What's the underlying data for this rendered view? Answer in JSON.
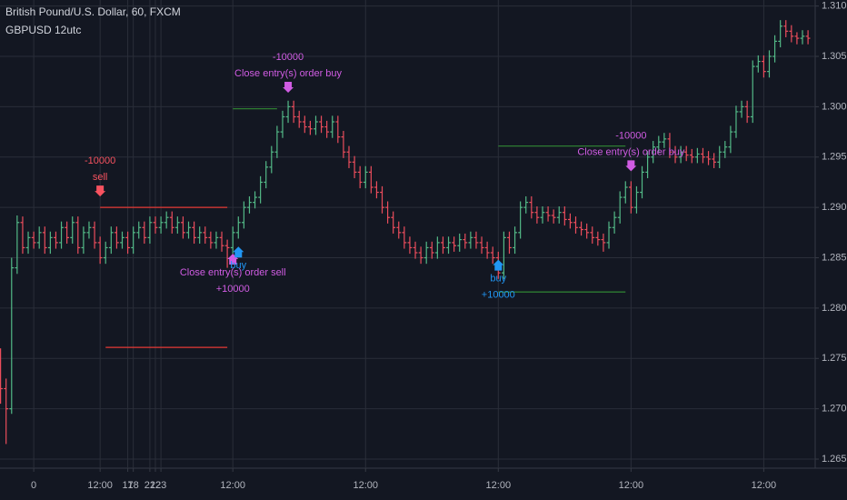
{
  "chart_data": {
    "type": "ohlc",
    "title": "British Pound/U.S. Dollar, 60, FXCM",
    "subtitle": "GBPUSD 12utc",
    "up_color": "#53b987",
    "down_color": "#eb4d5c",
    "grid": true,
    "xlim": [
      -6.1,
      141.3
    ],
    "ylim": [
      1.2641,
      1.3106
    ],
    "xticks": [
      0,
      {
        "value": 12,
        "label": "12:00"
      },
      17,
      {
        "value": 36,
        "label": "12:00"
      },
      18,
      {
        "value": 60,
        "label": "12:00"
      },
      21,
      {
        "value": 84,
        "label": "12:00"
      },
      22,
      {
        "value": 108,
        "label": "12:00"
      },
      23,
      {
        "value": 132,
        "label": "12:00"
      }
    ],
    "yticks": [
      {
        "value": 1.265,
        "label": "1.2650"
      },
      {
        "value": 1.27,
        "label": "1.2700"
      },
      {
        "value": 1.275,
        "label": "1.2750"
      },
      {
        "value": 1.28,
        "label": "1.2800"
      },
      {
        "value": 1.285,
        "label": "1.2850"
      },
      {
        "value": 1.29,
        "label": "1.2900"
      },
      {
        "value": 1.295,
        "label": "1.2950"
      },
      {
        "value": 1.3,
        "label": "1.3000"
      },
      {
        "value": 1.305,
        "label": "1.3050"
      },
      {
        "value": 1.31,
        "label": "1.3100"
      }
    ],
    "x": [
      -6,
      -5,
      -4,
      -3,
      -2,
      -1,
      0,
      1,
      2,
      3,
      4,
      5,
      6,
      7,
      8,
      9,
      10,
      11,
      12,
      13,
      14,
      15,
      16,
      17,
      18,
      19,
      20,
      21,
      22,
      23,
      24,
      25,
      26,
      27,
      28,
      29,
      30,
      31,
      32,
      33,
      34,
      35,
      36,
      37,
      38,
      39,
      40,
      41,
      42,
      43,
      44,
      45,
      46,
      47,
      48,
      49,
      50,
      51,
      52,
      53,
      54,
      55,
      56,
      57,
      58,
      59,
      60,
      61,
      62,
      63,
      64,
      65,
      66,
      67,
      68,
      69,
      70,
      71,
      72,
      73,
      74,
      75,
      76,
      77,
      78,
      79,
      80,
      81,
      82,
      83,
      84,
      85,
      86,
      87,
      88,
      89,
      90,
      91,
      92,
      93,
      94,
      95,
      96,
      97,
      98,
      99,
      100,
      101,
      102,
      103,
      104,
      105,
      106,
      107,
      108,
      109,
      110,
      111,
      112,
      113,
      114,
      115,
      116,
      117,
      118,
      119,
      120,
      121,
      122,
      123,
      124,
      125,
      126,
      127,
      128,
      129,
      130,
      131,
      132,
      133,
      134,
      135,
      136,
      137,
      138,
      139,
      140
    ],
    "open": [
      1.274,
      1.272,
      1.27,
      1.284,
      1.2885,
      1.286,
      1.287,
      1.2865,
      1.2875,
      1.286,
      1.287,
      1.2865,
      1.288,
      1.287,
      1.2885,
      1.286,
      1.2875,
      1.288,
      1.2865,
      1.285,
      1.286,
      1.2875,
      1.2865,
      1.287,
      1.286,
      1.2875,
      1.288,
      1.287,
      1.2885,
      1.288,
      1.2885,
      1.289,
      1.288,
      1.2885,
      1.2875,
      1.288,
      1.287,
      1.2875,
      1.287,
      1.2865,
      1.287,
      1.2862,
      1.286,
      1.2875,
      1.2885,
      1.29,
      1.2905,
      1.291,
      1.2925,
      1.294,
      1.2955,
      1.2975,
      1.299,
      1.3,
      1.299,
      1.2985,
      1.298,
      1.2978,
      1.2985,
      1.298,
      1.2975,
      1.2985,
      1.297,
      1.2955,
      1.2945,
      1.2935,
      1.2925,
      1.2935,
      1.292,
      1.2915,
      1.29,
      1.289,
      1.288,
      1.2875,
      1.2865,
      1.286,
      1.2855,
      1.285,
      1.286,
      1.2855,
      1.2865,
      1.286,
      1.2865,
      1.2862,
      1.2868,
      1.2865,
      1.287,
      1.2865,
      1.286,
      1.2855,
      1.285,
      1.2835,
      1.287,
      1.286,
      1.2875,
      1.29,
      1.2905,
      1.2895,
      1.289,
      1.2895,
      1.2892,
      1.289,
      1.2895,
      1.2888,
      1.2885,
      1.288,
      1.2878,
      1.2875,
      1.287,
      1.2868,
      1.2865,
      1.288,
      1.289,
      1.291,
      1.292,
      1.29,
      1.2915,
      1.2935,
      1.295,
      1.296,
      1.2965,
      1.2968,
      1.2955,
      1.295,
      1.2955,
      1.2952,
      1.295,
      1.2953,
      1.295,
      1.2948,
      1.2945,
      1.2955,
      1.296,
      1.2975,
      1.2995,
      1.3,
      1.299,
      1.304,
      1.3045,
      1.3035,
      1.305,
      1.3065,
      1.308,
      1.3075,
      1.307,
      1.3068,
      1.307
    ],
    "high": [
      1.276,
      1.273,
      1.285,
      1.2892,
      1.2891,
      1.2876,
      1.2876,
      1.2881,
      1.2881,
      1.2876,
      1.2876,
      1.2886,
      1.2886,
      1.2891,
      1.2891,
      1.2881,
      1.2886,
      1.2886,
      1.2871,
      1.2866,
      1.2881,
      1.2881,
      1.2876,
      1.2876,
      1.2881,
      1.2886,
      1.2886,
      1.2891,
      1.2891,
      1.2891,
      1.2896,
      1.2896,
      1.2891,
      1.2891,
      1.2886,
      1.2886,
      1.2881,
      1.2881,
      1.2876,
      1.2876,
      1.2876,
      1.2868,
      1.2881,
      1.2891,
      1.2906,
      1.2911,
      1.2916,
      1.2931,
      1.2946,
      1.2961,
      1.2981,
      1.2996,
      1.3006,
      1.3006,
      1.2996,
      1.2991,
      1.2986,
      1.2991,
      1.2991,
      1.2986,
      1.2991,
      1.2991,
      1.2976,
      1.2961,
      1.2951,
      1.2941,
      1.2941,
      1.2941,
      1.2926,
      1.2921,
      1.2906,
      1.2896,
      1.2886,
      1.2881,
      1.2871,
      1.2866,
      1.2861,
      1.2866,
      1.2866,
      1.2871,
      1.2871,
      1.2871,
      1.2871,
      1.2874,
      1.2874,
      1.2876,
      1.2876,
      1.2871,
      1.2866,
      1.2861,
      1.2856,
      1.2876,
      1.2876,
      1.2881,
      1.2906,
      1.2911,
      1.2911,
      1.2901,
      1.2901,
      1.2901,
      1.2898,
      1.2901,
      1.2901,
      1.2894,
      1.2891,
      1.2886,
      1.2884,
      1.2881,
      1.2876,
      1.2874,
      1.2886,
      1.2896,
      1.2916,
      1.2926,
      1.2926,
      1.2921,
      1.2941,
      1.2956,
      1.2966,
      1.2971,
      1.2974,
      1.2974,
      1.2961,
      1.2961,
      1.2961,
      1.2958,
      1.2959,
      1.2959,
      1.2956,
      1.2954,
      1.2961,
      1.2966,
      1.2981,
      1.3001,
      1.3006,
      1.3006,
      1.3046,
      1.3051,
      1.3051,
      1.3056,
      1.3071,
      1.3086,
      1.3086,
      1.3081,
      1.3074,
      1.3076,
      1.3076
    ],
    "low": [
      1.2705,
      1.2665,
      1.2695,
      1.2834,
      1.2854,
      1.2854,
      1.2859,
      1.2859,
      1.2854,
      1.2854,
      1.2859,
      1.2859,
      1.2864,
      1.2864,
      1.2854,
      1.2854,
      1.2869,
      1.2859,
      1.2844,
      1.2844,
      1.2854,
      1.2859,
      1.2859,
      1.2854,
      1.2854,
      1.2869,
      1.2864,
      1.2864,
      1.2874,
      1.2874,
      1.2879,
      1.2874,
      1.2874,
      1.2869,
      1.2869,
      1.2864,
      1.2864,
      1.2864,
      1.2859,
      1.2859,
      1.2856,
      1.284,
      1.2854,
      1.2869,
      1.2879,
      1.2894,
      1.2899,
      1.2904,
      1.2919,
      1.2934,
      1.2949,
      1.2969,
      1.2984,
      1.2984,
      1.2979,
      1.2974,
      1.2972,
      1.2972,
      1.2974,
      1.2969,
      1.2969,
      1.2964,
      1.2949,
      1.2939,
      1.2929,
      1.2919,
      1.2919,
      1.2914,
      1.2909,
      1.2894,
      1.2884,
      1.2874,
      1.2869,
      1.2859,
      1.2854,
      1.2849,
      1.2844,
      1.2844,
      1.2849,
      1.2849,
      1.2854,
      1.2854,
      1.2856,
      1.2856,
      1.2859,
      1.2859,
      1.2859,
      1.2854,
      1.2849,
      1.2844,
      1.2829,
      1.2829,
      1.2854,
      1.2854,
      1.2869,
      1.2894,
      1.2889,
      1.2884,
      1.2884,
      1.2886,
      1.2884,
      1.2884,
      1.2882,
      1.2879,
      1.2874,
      1.2872,
      1.2869,
      1.2864,
      1.2862,
      1.2856,
      1.2859,
      1.2874,
      1.2884,
      1.2904,
      1.2894,
      1.2894,
      1.2909,
      1.2929,
      1.2944,
      1.2954,
      1.2959,
      1.2949,
      1.2944,
      1.2944,
      1.2946,
      1.2944,
      1.2944,
      1.2944,
      1.2942,
      1.2939,
      1.2939,
      1.2949,
      1.2954,
      1.2969,
      1.2989,
      1.2984,
      1.2984,
      1.3034,
      1.3029,
      1.3029,
      1.3044,
      1.3059,
      1.3069,
      1.3064,
      1.3062,
      1.3062,
      1.3062
    ],
    "close": [
      1.272,
      1.27,
      1.284,
      1.2885,
      1.286,
      1.287,
      1.2865,
      1.2875,
      1.286,
      1.287,
      1.2865,
      1.288,
      1.287,
      1.2885,
      1.286,
      1.2875,
      1.288,
      1.2865,
      1.285,
      1.286,
      1.2875,
      1.2865,
      1.287,
      1.286,
      1.2875,
      1.288,
      1.287,
      1.2885,
      1.288,
      1.2885,
      1.289,
      1.288,
      1.2885,
      1.2875,
      1.288,
      1.287,
      1.2875,
      1.287,
      1.2865,
      1.287,
      1.2862,
      1.286,
      1.2875,
      1.2885,
      1.29,
      1.2905,
      1.291,
      1.2925,
      1.294,
      1.2955,
      1.2975,
      1.299,
      1.3,
      1.299,
      1.2985,
      1.298,
      1.2978,
      1.2985,
      1.298,
      1.2975,
      1.2985,
      1.297,
      1.2955,
      1.2945,
      1.2935,
      1.2925,
      1.2935,
      1.292,
      1.2915,
      1.29,
      1.289,
      1.288,
      1.2875,
      1.2865,
      1.286,
      1.2855,
      1.285,
      1.286,
      1.2855,
      1.2865,
      1.286,
      1.2865,
      1.2862,
      1.2868,
      1.2865,
      1.287,
      1.2865,
      1.286,
      1.2855,
      1.285,
      1.2835,
      1.287,
      1.286,
      1.2875,
      1.29,
      1.2905,
      1.2895,
      1.289,
      1.2895,
      1.2892,
      1.289,
      1.2895,
      1.2888,
      1.2885,
      1.288,
      1.2878,
      1.2875,
      1.287,
      1.2868,
      1.2865,
      1.288,
      1.289,
      1.291,
      1.292,
      1.29,
      1.2915,
      1.2935,
      1.295,
      1.296,
      1.2965,
      1.2968,
      1.2955,
      1.295,
      1.2955,
      1.2952,
      1.295,
      1.2953,
      1.295,
      1.2948,
      1.2945,
      1.2955,
      1.296,
      1.2975,
      1.2995,
      1.3,
      1.299,
      1.304,
      1.3045,
      1.3035,
      1.305,
      1.3065,
      1.308,
      1.3075,
      1.307,
      1.3068,
      1.307,
      1.3068
    ],
    "levels": [
      {
        "y": 1.29,
        "x": [
          12,
          35
        ],
        "color": "#e53935"
      },
      {
        "y": 1.2761,
        "x": [
          13,
          35
        ],
        "color": "#e53935"
      },
      {
        "y": 1.2998,
        "x": [
          36,
          44
        ],
        "color": "#2e7d32"
      },
      {
        "y": 1.2961,
        "x": [
          84,
          107
        ],
        "color": "#2e7d32"
      },
      {
        "y": 1.2816,
        "x": [
          84,
          107
        ],
        "color": "#2e7d32"
      }
    ],
    "signals": [
      {
        "x": 12,
        "price": 1.291,
        "direction": "down",
        "color": "#f7525f",
        "labels": [
          "-10000",
          "sell"
        ]
      },
      {
        "x": 46,
        "price": 1.3013,
        "direction": "down",
        "color": "#d05ce3",
        "labels": [
          "-10000",
          "Close entry(s) order buy"
        ]
      },
      {
        "x": 36,
        "price": 1.2855,
        "direction": "up",
        "color": "#d05ce3",
        "labels": [
          "Close entry(s) order sell",
          "+10000"
        ]
      },
      {
        "x": 37,
        "price": 1.2862,
        "direction": "up",
        "color": "#2196f3",
        "labels": [
          "buy"
        ]
      },
      {
        "x": 84,
        "price": 1.2849,
        "direction": "up",
        "color": "#2196f3",
        "labels": [
          "buy",
          "+10000"
        ]
      },
      {
        "x": 108,
        "price": 1.2935,
        "direction": "down",
        "color": "#d05ce3",
        "labels": [
          "-10000",
          "Close entry(s) order buy"
        ]
      }
    ]
  }
}
